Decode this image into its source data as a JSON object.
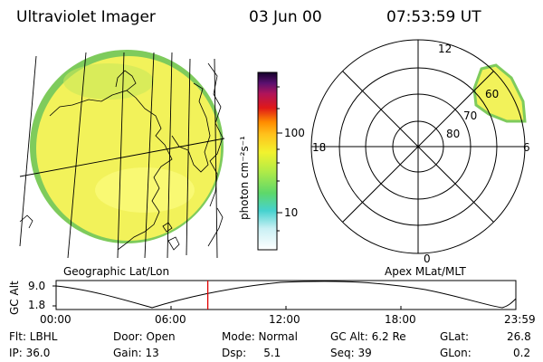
{
  "header": {
    "instrument": "Ultraviolet Imager",
    "date": "03 Jun 00",
    "time": "07:53:59 UT"
  },
  "colorbar": {
    "unit_label": "photon cm⁻²s⁻¹",
    "ticks": [
      "100",
      "10"
    ]
  },
  "polar": {
    "mlt_labels": [
      "12",
      "18",
      "6",
      "0"
    ],
    "lat_labels": [
      "60",
      "70",
      "80"
    ]
  },
  "panels": {
    "left_caption": "Geographic Lat/Lon",
    "right_caption": "Apex MLat/MLT"
  },
  "altitude_plot": {
    "ylabel": "GC Alt",
    "yticks": [
      "9.0",
      "1.8"
    ],
    "xticks": [
      "00:00",
      "06:00",
      "12:00",
      "18:00",
      "23:59"
    ],
    "current_time_fraction": 0.33
  },
  "info": {
    "flt": "Flt: LBHL",
    "ip": "IP: 36.0",
    "door": "Door: Open",
    "gain": "Gain: 13",
    "mode": "Mode: Normal",
    "dsp": "Dsp:     5.1",
    "gcalt": "GC Alt: 6.2 Re",
    "seq": "Seq: 39",
    "glat_label": "GLat:",
    "glat_value": "26.8",
    "glon_label": "GLon:",
    "glon_value": "0.2"
  },
  "colors": {
    "disk_fill": "#f2f25a",
    "disk_edge": "#7ecb5c",
    "marker": "#e00000"
  }
}
